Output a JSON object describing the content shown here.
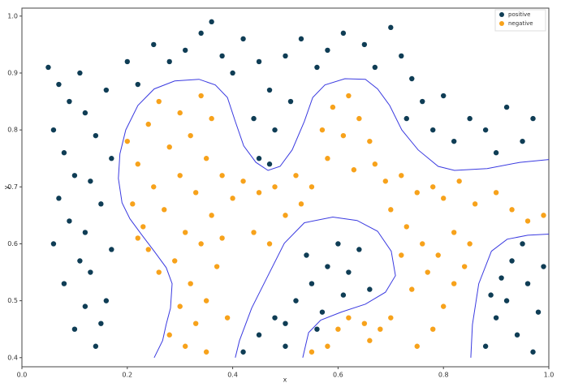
{
  "chart_data": {
    "type": "scatter",
    "xlabel": "x",
    "ylabel": "y",
    "xlim": [
      0,
      1
    ],
    "ylim": [
      0.384,
      1.014
    ],
    "xticks": [
      {
        "value": 0,
        "label": "0.0"
      },
      {
        "value": 0.2,
        "label": "0.2"
      },
      {
        "value": 0.4,
        "label": "0.4"
      },
      {
        "value": 0.6,
        "label": "0.6"
      },
      {
        "value": 0.8,
        "label": "0.8"
      },
      {
        "value": 1,
        "label": "1.0"
      }
    ],
    "yticks": [
      0.4,
      0.5,
      0.6,
      0.7,
      0.8,
      0.9,
      {
        "value": 1,
        "label": "1.0"
      }
    ],
    "legend": "upper right",
    "series": [
      {
        "name": "positive",
        "color": "#0f3d55",
        "x": [
          0.05,
          0.07,
          0.09,
          0.06,
          0.08,
          0.1,
          0.07,
          0.09,
          0.06,
          0.11,
          0.08,
          0.12,
          0.1,
          0.14,
          0.15,
          0.16,
          0.13,
          0.17,
          0.12,
          0.15,
          0.13,
          0.17,
          0.14,
          0.12,
          0.16,
          0.11,
          0.2,
          0.22,
          0.25,
          0.28,
          0.31,
          0.34,
          0.36,
          0.38,
          0.4,
          0.42,
          0.45,
          0.47,
          0.44,
          0.48,
          0.51,
          0.5,
          0.53,
          0.56,
          0.58,
          0.61,
          0.65,
          0.67,
          0.7,
          0.72,
          0.74,
          0.76,
          0.73,
          0.78,
          0.8,
          0.82,
          0.85,
          0.88,
          0.9,
          0.92,
          0.95,
          0.97,
          0.45,
          0.47,
          0.42,
          0.45,
          0.48,
          0.5,
          0.52,
          0.55,
          0.57,
          0.58,
          0.6,
          0.62,
          0.64,
          0.66,
          0.61,
          0.54,
          0.5,
          0.56,
          0.88,
          0.9,
          0.92,
          0.94,
          0.96,
          0.98,
          0.93,
          0.97,
          0.99,
          0.91,
          0.95,
          0.89
        ],
        "values": [
          0.91,
          0.88,
          0.85,
          0.8,
          0.76,
          0.72,
          0.68,
          0.64,
          0.6,
          0.57,
          0.53,
          0.49,
          0.45,
          0.42,
          0.46,
          0.5,
          0.55,
          0.59,
          0.62,
          0.67,
          0.71,
          0.75,
          0.79,
          0.83,
          0.87,
          0.9,
          0.92,
          0.88,
          0.95,
          0.92,
          0.94,
          0.97,
          0.99,
          0.93,
          0.9,
          0.96,
          0.92,
          0.87,
          0.82,
          0.8,
          0.85,
          0.93,
          0.96,
          0.91,
          0.94,
          0.97,
          0.95,
          0.91,
          0.98,
          0.93,
          0.89,
          0.85,
          0.82,
          0.8,
          0.86,
          0.78,
          0.82,
          0.8,
          0.76,
          0.84,
          0.78,
          0.82,
          0.75,
          0.74,
          0.41,
          0.44,
          0.47,
          0.42,
          0.5,
          0.53,
          0.48,
          0.56,
          0.6,
          0.55,
          0.59,
          0.52,
          0.51,
          0.58,
          0.46,
          0.45,
          0.42,
          0.47,
          0.5,
          0.44,
          0.53,
          0.48,
          0.57,
          0.41,
          0.56,
          0.54,
          0.6,
          0.51
        ]
      },
      {
        "name": "negative",
        "color": "#f7a21b",
        "x": [
          0.2,
          0.22,
          0.24,
          0.26,
          0.28,
          0.3,
          0.32,
          0.34,
          0.36,
          0.25,
          0.27,
          0.23,
          0.21,
          0.3,
          0.33,
          0.35,
          0.38,
          0.4,
          0.42,
          0.45,
          0.48,
          0.52,
          0.55,
          0.58,
          0.57,
          0.59,
          0.62,
          0.64,
          0.66,
          0.61,
          0.63,
          0.67,
          0.69,
          0.72,
          0.75,
          0.78,
          0.8,
          0.83,
          0.86,
          0.9,
          0.93,
          0.96,
          0.99,
          0.7,
          0.73,
          0.76,
          0.79,
          0.82,
          0.85,
          0.77,
          0.74,
          0.8,
          0.78,
          0.75,
          0.82,
          0.72,
          0.84,
          0.31,
          0.34,
          0.29,
          0.32,
          0.3,
          0.33,
          0.35,
          0.37,
          0.38,
          0.36,
          0.44,
          0.47,
          0.5,
          0.53,
          0.28,
          0.31,
          0.35,
          0.39,
          0.58,
          0.6,
          0.62,
          0.65,
          0.68,
          0.7,
          0.66,
          0.55,
          0.24,
          0.26,
          0.22
        ],
        "values": [
          0.78,
          0.74,
          0.81,
          0.85,
          0.77,
          0.83,
          0.79,
          0.86,
          0.82,
          0.7,
          0.66,
          0.63,
          0.67,
          0.72,
          0.69,
          0.75,
          0.72,
          0.68,
          0.71,
          0.69,
          0.7,
          0.72,
          0.7,
          0.75,
          0.8,
          0.84,
          0.86,
          0.82,
          0.78,
          0.79,
          0.73,
          0.74,
          0.71,
          0.72,
          0.69,
          0.7,
          0.68,
          0.71,
          0.67,
          0.69,
          0.66,
          0.64,
          0.65,
          0.66,
          0.63,
          0.6,
          0.58,
          0.62,
          0.6,
          0.55,
          0.52,
          0.49,
          0.45,
          0.42,
          0.53,
          0.58,
          0.56,
          0.62,
          0.6,
          0.57,
          0.53,
          0.49,
          0.46,
          0.5,
          0.56,
          0.61,
          0.65,
          0.62,
          0.6,
          0.65,
          0.67,
          0.44,
          0.42,
          0.41,
          0.47,
          0.42,
          0.45,
          0.47,
          0.46,
          0.45,
          0.47,
          0.43,
          0.41,
          0.59,
          0.55,
          0.61
        ]
      }
    ],
    "lines": [
      {
        "color": "#3a3ae0",
        "x": [
          0.251,
          0.267,
          0.274,
          0.282,
          0.285,
          0.274,
          0.251,
          0.228,
          0.205,
          0.19,
          0.183,
          0.186,
          0.197,
          0.22,
          0.251,
          0.29,
          0.336,
          0.367,
          0.39,
          0.405,
          0.421,
          0.444,
          0.467,
          0.49,
          0.513,
          0.536,
          0.552,
          0.575,
          0.613,
          0.652,
          0.675,
          0.698,
          0.721,
          0.752,
          0.79,
          0.821,
          0.883,
          0.945,
          1.0,
          null,
          0.405,
          0.413,
          0.436,
          0.467,
          0.498,
          0.536,
          0.59,
          0.636,
          0.675,
          0.701,
          0.709,
          0.69,
          0.652,
          0.606,
          0.567,
          0.544,
          0.533,
          null,
          0.852,
          0.855,
          0.867,
          0.891,
          0.921,
          0.96,
          1.0
        ],
        "values": [
          0.4,
          0.43,
          0.459,
          0.487,
          0.53,
          0.558,
          0.587,
          0.615,
          0.644,
          0.672,
          0.715,
          0.758,
          0.8,
          0.843,
          0.872,
          0.886,
          0.889,
          0.879,
          0.857,
          0.815,
          0.772,
          0.743,
          0.729,
          0.736,
          0.765,
          0.815,
          0.857,
          0.879,
          0.89,
          0.889,
          0.872,
          0.843,
          0.8,
          0.765,
          0.736,
          0.729,
          0.732,
          0.743,
          0.748,
          null,
          0.4,
          0.43,
          0.487,
          0.544,
          0.601,
          0.637,
          0.647,
          0.641,
          0.622,
          0.587,
          0.544,
          0.515,
          0.494,
          0.48,
          0.466,
          0.444,
          0.4,
          null,
          0.4,
          0.458,
          0.53,
          0.587,
          0.608,
          0.615,
          0.617
        ]
      }
    ]
  }
}
